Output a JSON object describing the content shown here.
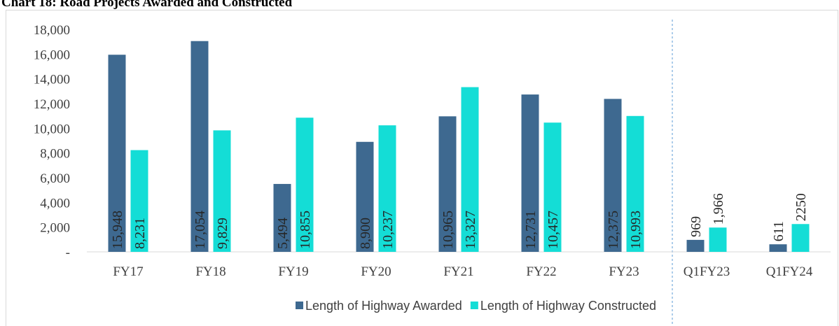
{
  "chart_data": {
    "type": "bar",
    "title": "Chart 18: Road Projects Awarded and Constructed",
    "categories": [
      "FY17",
      "FY18",
      "FY19",
      "FY20",
      "FY21",
      "FY22",
      "FY23",
      "Q1FY23",
      "Q1FY24"
    ],
    "series": [
      {
        "name": "Length of Highway Awarded",
        "color": "#3e6990",
        "values": [
          15948,
          17054,
          5494,
          8900,
          10965,
          12731,
          12375,
          969,
          611
        ],
        "value_labels": [
          "15,948",
          "17,054",
          "5,494",
          "8,900",
          "10,965",
          "12,731",
          "12,375",
          "969",
          "611"
        ]
      },
      {
        "name": "Length of Highway Constructed",
        "color": "#14ddd6",
        "values": [
          8231,
          9829,
          10855,
          10237,
          13327,
          10457,
          10993,
          1966,
          2250
        ],
        "value_labels": [
          "8,231",
          "9,829",
          "10,855",
          "10,237",
          "13,327",
          "10,457",
          "10,993",
          "1,966",
          "2250"
        ]
      }
    ],
    "ylim": [
      0,
      18000
    ],
    "yticks": [
      {
        "value": 0,
        "label": "-"
      },
      {
        "value": 2000,
        "label": "2,000"
      },
      {
        "value": 4000,
        "label": "4,000"
      },
      {
        "value": 6000,
        "label": "6,000"
      },
      {
        "value": 8000,
        "label": "8,000"
      },
      {
        "value": 10000,
        "label": "10,000"
      },
      {
        "value": 12000,
        "label": "12,000"
      },
      {
        "value": 14000,
        "label": "14,000"
      },
      {
        "value": 16000,
        "label": "16,000"
      },
      {
        "value": 18000,
        "label": "18,000"
      }
    ],
    "legend": "bottom"
  }
}
